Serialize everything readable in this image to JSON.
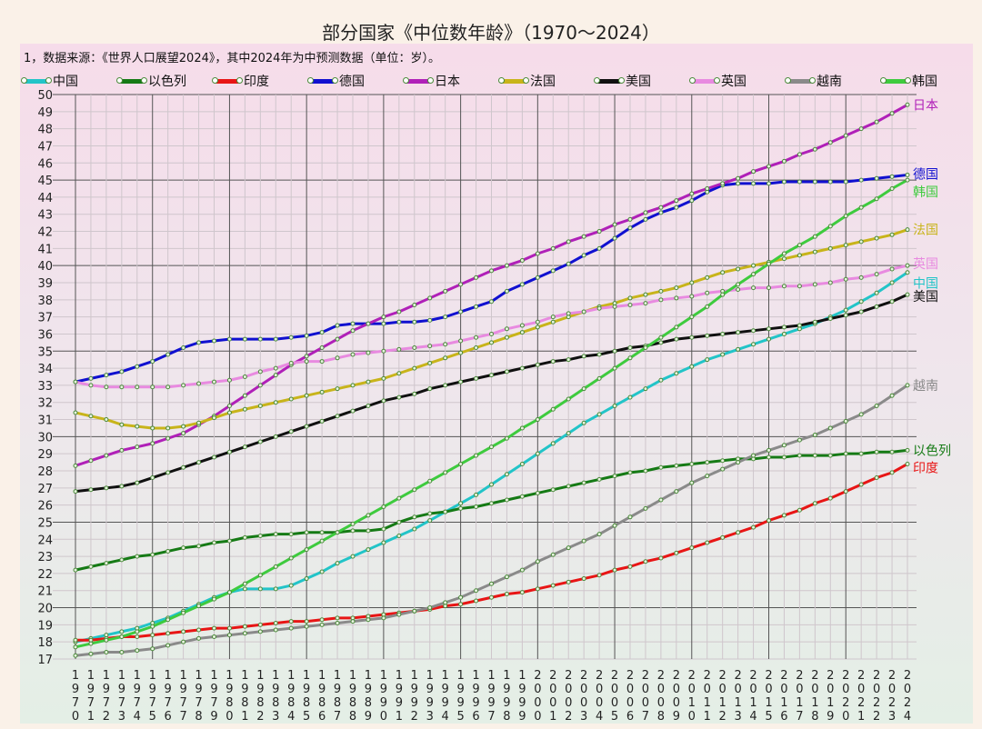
{
  "title": "部分国家《中位数年龄》（1970～2024）",
  "note": "1，数据来源：《世界人口展望2024》，其中2024年为中预测数据（单位：岁）。",
  "chart_data": {
    "type": "line",
    "title": "部分国家《中位数年龄》（1970～2024）",
    "subtitle": "1，数据来源：《世界人口展望2024》，其中2024年为中预测数据（单位：岁）。",
    "xlabel": "",
    "ylabel": "",
    "ylim": [
      17,
      50
    ],
    "xlim": [
      1970,
      2024
    ],
    "grid": true,
    "legend_position": "top",
    "x": [
      1970,
      1971,
      1972,
      1973,
      1974,
      1975,
      1976,
      1977,
      1978,
      1979,
      1980,
      1981,
      1982,
      1983,
      1984,
      1985,
      1986,
      1987,
      1988,
      1989,
      1990,
      1991,
      1992,
      1993,
      1994,
      1995,
      1996,
      1997,
      1998,
      1999,
      2000,
      2001,
      2002,
      2003,
      2004,
      2005,
      2006,
      2007,
      2008,
      2009,
      2010,
      2011,
      2012,
      2013,
      2014,
      2015,
      2016,
      2017,
      2018,
      2019,
      2020,
      2021,
      2022,
      2023,
      2024
    ],
    "series": [
      {
        "name": "中国",
        "color": "#22c4c8",
        "values": [
          18.0,
          18.2,
          18.4,
          18.6,
          18.8,
          19.1,
          19.4,
          19.8,
          20.2,
          20.6,
          20.9,
          21.1,
          21.1,
          21.1,
          21.3,
          21.7,
          22.1,
          22.6,
          23.0,
          23.4,
          23.8,
          24.2,
          24.6,
          25.1,
          25.6,
          26.1,
          26.6,
          27.2,
          27.8,
          28.4,
          29.0,
          29.6,
          30.2,
          30.8,
          31.3,
          31.8,
          32.3,
          32.8,
          33.3,
          33.7,
          34.1,
          34.5,
          34.8,
          35.1,
          35.4,
          35.7,
          36.0,
          36.3,
          36.6,
          37.0,
          37.4,
          37.9,
          38.4,
          39.0,
          39.6
        ]
      },
      {
        "name": "以色列",
        "color": "#157a15",
        "values": [
          22.2,
          22.4,
          22.6,
          22.8,
          23.0,
          23.1,
          23.3,
          23.5,
          23.6,
          23.8,
          23.9,
          24.1,
          24.2,
          24.3,
          24.3,
          24.4,
          24.4,
          24.4,
          24.5,
          24.5,
          24.6,
          25.0,
          25.3,
          25.5,
          25.6,
          25.8,
          25.9,
          26.1,
          26.3,
          26.5,
          26.7,
          26.9,
          27.1,
          27.3,
          27.5,
          27.7,
          27.9,
          28.0,
          28.2,
          28.3,
          28.4,
          28.5,
          28.6,
          28.7,
          28.7,
          28.8,
          28.8,
          28.9,
          28.9,
          28.9,
          29.0,
          29.0,
          29.1,
          29.1,
          29.2
        ]
      },
      {
        "name": "印度",
        "color": "#e81515",
        "values": [
          18.1,
          18.1,
          18.2,
          18.3,
          18.3,
          18.4,
          18.5,
          18.6,
          18.7,
          18.8,
          18.8,
          18.9,
          19.0,
          19.1,
          19.2,
          19.2,
          19.3,
          19.4,
          19.4,
          19.5,
          19.6,
          19.7,
          19.8,
          19.9,
          20.1,
          20.2,
          20.4,
          20.6,
          20.8,
          20.9,
          21.1,
          21.3,
          21.5,
          21.7,
          21.9,
          22.2,
          22.4,
          22.7,
          22.9,
          23.2,
          23.5,
          23.8,
          24.1,
          24.4,
          24.7,
          25.1,
          25.4,
          25.7,
          26.1,
          26.4,
          26.8,
          27.2,
          27.6,
          27.9,
          28.4
        ]
      },
      {
        "name": "德国",
        "color": "#1010d0",
        "values": [
          33.2,
          33.4,
          33.6,
          33.8,
          34.1,
          34.4,
          34.8,
          35.2,
          35.5,
          35.6,
          35.7,
          35.7,
          35.7,
          35.7,
          35.8,
          35.9,
          36.1,
          36.5,
          36.6,
          36.6,
          36.6,
          36.7,
          36.7,
          36.8,
          37.0,
          37.3,
          37.6,
          37.9,
          38.5,
          38.9,
          39.3,
          39.7,
          40.1,
          40.6,
          41.0,
          41.6,
          42.2,
          42.7,
          43.1,
          43.4,
          43.8,
          44.3,
          44.7,
          44.8,
          44.8,
          44.8,
          44.9,
          44.9,
          44.9,
          44.9,
          44.9,
          45.0,
          45.1,
          45.2,
          45.3
        ]
      },
      {
        "name": "日本",
        "color": "#b020b8",
        "values": [
          28.3,
          28.6,
          28.9,
          29.2,
          29.4,
          29.6,
          29.9,
          30.2,
          30.7,
          31.2,
          31.8,
          32.4,
          33.0,
          33.6,
          34.2,
          34.7,
          35.2,
          35.7,
          36.2,
          36.6,
          37.0,
          37.3,
          37.7,
          38.1,
          38.5,
          38.9,
          39.3,
          39.7,
          40.0,
          40.3,
          40.7,
          41.0,
          41.4,
          41.7,
          42.0,
          42.4,
          42.7,
          43.1,
          43.4,
          43.8,
          44.2,
          44.5,
          44.8,
          45.1,
          45.5,
          45.8,
          46.1,
          46.5,
          46.8,
          47.2,
          47.6,
          48.0,
          48.4,
          48.9,
          49.4
        ]
      },
      {
        "name": "法国",
        "color": "#c8b41a",
        "values": [
          31.4,
          31.2,
          31.0,
          30.7,
          30.6,
          30.5,
          30.5,
          30.6,
          30.8,
          31.1,
          31.4,
          31.6,
          31.8,
          32.0,
          32.2,
          32.4,
          32.6,
          32.8,
          33.0,
          33.2,
          33.4,
          33.7,
          34.0,
          34.3,
          34.6,
          34.9,
          35.2,
          35.5,
          35.8,
          36.1,
          36.4,
          36.7,
          37.0,
          37.3,
          37.6,
          37.8,
          38.1,
          38.3,
          38.5,
          38.7,
          39.0,
          39.3,
          39.6,
          39.8,
          40.0,
          40.2,
          40.4,
          40.6,
          40.8,
          41.0,
          41.2,
          41.4,
          41.6,
          41.8,
          42.1
        ]
      },
      {
        "name": "美国",
        "color": "#101010",
        "values": [
          26.8,
          26.9,
          27.0,
          27.1,
          27.3,
          27.6,
          27.9,
          28.2,
          28.5,
          28.8,
          29.1,
          29.4,
          29.7,
          30.0,
          30.3,
          30.6,
          30.9,
          31.2,
          31.5,
          31.8,
          32.1,
          32.3,
          32.5,
          32.8,
          33.0,
          33.2,
          33.4,
          33.6,
          33.8,
          34.0,
          34.2,
          34.4,
          34.5,
          34.7,
          34.8,
          35.0,
          35.2,
          35.3,
          35.5,
          35.7,
          35.8,
          35.9,
          36.0,
          36.1,
          36.2,
          36.3,
          36.4,
          36.5,
          36.7,
          36.9,
          37.1,
          37.3,
          37.6,
          37.9,
          38.3
        ]
      },
      {
        "name": "英国",
        "color": "#e88ae0",
        "values": [
          33.2,
          33.0,
          32.9,
          32.9,
          32.9,
          32.9,
          32.9,
          33.0,
          33.1,
          33.2,
          33.3,
          33.5,
          33.8,
          34.0,
          34.3,
          34.4,
          34.4,
          34.6,
          34.8,
          34.9,
          35.0,
          35.1,
          35.2,
          35.3,
          35.4,
          35.6,
          35.8,
          36.0,
          36.3,
          36.5,
          36.7,
          37.0,
          37.2,
          37.3,
          37.5,
          37.6,
          37.7,
          37.8,
          38.0,
          38.1,
          38.2,
          38.4,
          38.5,
          38.6,
          38.7,
          38.7,
          38.8,
          38.8,
          38.9,
          39.0,
          39.2,
          39.3,
          39.5,
          39.8,
          40.0
        ]
      },
      {
        "name": "越南",
        "color": "#8a8a8a",
        "values": [
          17.2,
          17.3,
          17.4,
          17.4,
          17.5,
          17.6,
          17.8,
          18.0,
          18.2,
          18.3,
          18.4,
          18.5,
          18.6,
          18.7,
          18.8,
          18.9,
          19.0,
          19.1,
          19.2,
          19.3,
          19.4,
          19.6,
          19.8,
          20.0,
          20.3,
          20.6,
          21.0,
          21.4,
          21.8,
          22.2,
          22.7,
          23.1,
          23.5,
          23.9,
          24.3,
          24.8,
          25.3,
          25.8,
          26.3,
          26.8,
          27.3,
          27.7,
          28.1,
          28.5,
          28.9,
          29.2,
          29.5,
          29.8,
          30.1,
          30.5,
          30.9,
          31.3,
          31.8,
          32.4,
          33.0
        ]
      },
      {
        "name": "韩国",
        "color": "#3ecb3e",
        "values": [
          17.7,
          17.9,
          18.1,
          18.3,
          18.6,
          18.9,
          19.3,
          19.7,
          20.1,
          20.5,
          20.9,
          21.4,
          21.9,
          22.4,
          22.9,
          23.4,
          23.9,
          24.4,
          24.9,
          25.4,
          25.9,
          26.4,
          26.9,
          27.4,
          27.9,
          28.4,
          28.9,
          29.4,
          29.9,
          30.5,
          31.0,
          31.6,
          32.2,
          32.8,
          33.4,
          34.0,
          34.6,
          35.2,
          35.8,
          36.4,
          37.0,
          37.6,
          38.3,
          38.9,
          39.5,
          40.1,
          40.7,
          41.2,
          41.7,
          42.3,
          42.9,
          43.4,
          43.9,
          44.5,
          45.0
        ]
      }
    ]
  }
}
